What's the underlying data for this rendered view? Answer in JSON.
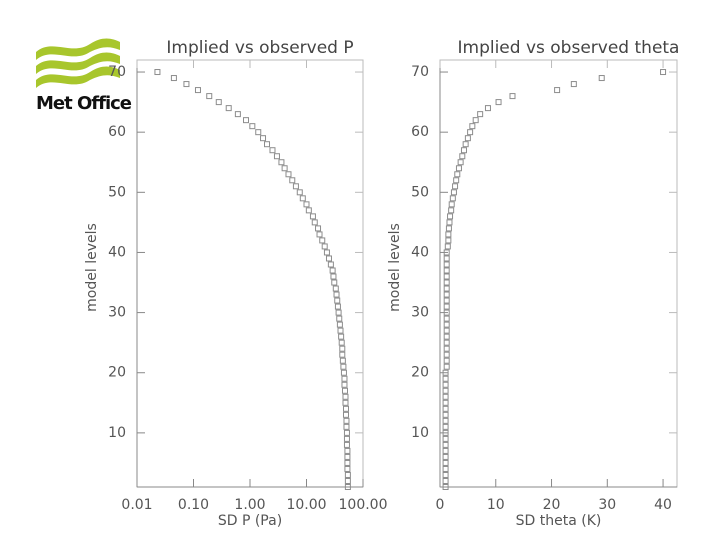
{
  "logo": {
    "text": "Met Office"
  },
  "chart_data": [
    {
      "type": "scatter",
      "title": "Implied vs observed P",
      "xlabel": "SD P (Pa)",
      "ylabel": "model levels",
      "xscale": "log",
      "xlim": [
        0.01,
        100
      ],
      "ylim": [
        1,
        72
      ],
      "xticks": [
        0.01,
        {
          "value": 0.1,
          "label": "0.10"
        },
        {
          "value": 1,
          "label": "1.00"
        },
        {
          "value": 10,
          "label": "10.00"
        },
        {
          "value": 100,
          "label": "100.00"
        }
      ],
      "yticks": [
        10,
        20,
        30,
        40,
        50,
        60,
        70
      ],
      "color": "#8c8c8c",
      "x": [
        54,
        54,
        54,
        53,
        53,
        53,
        53,
        52,
        52,
        52,
        51,
        51,
        50,
        50,
        49,
        49,
        48,
        47,
        47,
        46,
        45,
        44,
        43,
        43,
        42,
        41,
        40,
        39,
        38,
        37,
        36,
        35,
        34,
        33,
        31,
        30,
        29,
        27,
        25,
        23,
        21,
        19,
        17,
        16,
        14,
        13,
        11,
        10,
        8.6,
        7.6,
        6.5,
        5.6,
        4.8,
        4.1,
        3.6,
        3.0,
        2.5,
        2.0,
        1.7,
        1.4,
        1.1,
        0.85,
        0.61,
        0.42,
        0.28,
        0.19,
        0.12,
        0.075,
        0.045,
        0.023
      ],
      "y": [
        1,
        2,
        3,
        4,
        5,
        6,
        7,
        8,
        9,
        10,
        11,
        12,
        13,
        14,
        15,
        16,
        17,
        18,
        19,
        20,
        21,
        22,
        23,
        24,
        25,
        26,
        27,
        28,
        29,
        30,
        31,
        32,
        33,
        34,
        35,
        36,
        37,
        38,
        39,
        40,
        41,
        42,
        43,
        44,
        45,
        46,
        47,
        48,
        49,
        50,
        51,
        52,
        53,
        54,
        55,
        56,
        57,
        58,
        59,
        60,
        61,
        62,
        63,
        64,
        65,
        66,
        67,
        68,
        69,
        70
      ]
    },
    {
      "type": "scatter",
      "title": "Implied vs observed theta",
      "xlabel": "SD theta (K)",
      "ylabel": "model levels",
      "xscale": "linear",
      "xlim": [
        0,
        42.5
      ],
      "ylim": [
        1,
        72
      ],
      "xticks": [
        0,
        10,
        20,
        30,
        40
      ],
      "yticks": [
        10,
        20,
        30,
        40,
        50,
        60,
        70
      ],
      "color": "#8c8c8c",
      "x": [
        1.0,
        1.0,
        1.0,
        1.0,
        1.0,
        1.0,
        1.0,
        1.0,
        1.0,
        1.0,
        1.0,
        1.0,
        1.0,
        1.0,
        1.0,
        1.0,
        1.0,
        1.0,
        1.0,
        1.0,
        1.2,
        1.2,
        1.2,
        1.2,
        1.2,
        1.2,
        1.2,
        1.2,
        1.2,
        1.2,
        1.2,
        1.2,
        1.2,
        1.2,
        1.2,
        1.2,
        1.2,
        1.2,
        1.2,
        1.2,
        1.4,
        1.5,
        1.5,
        1.6,
        1.7,
        1.8,
        2.0,
        2.1,
        2.3,
        2.5,
        2.7,
        2.9,
        3.1,
        3.4,
        3.7,
        4.0,
        4.3,
        4.6,
        5.0,
        5.4,
        5.8,
        6.4,
        7.2,
        8.6,
        10.5,
        13,
        21,
        24,
        29,
        40
      ],
      "y": [
        1,
        2,
        3,
        4,
        5,
        6,
        7,
        8,
        9,
        10,
        11,
        12,
        13,
        14,
        15,
        16,
        17,
        18,
        19,
        20,
        21,
        22,
        23,
        24,
        25,
        26,
        27,
        28,
        29,
        30,
        31,
        32,
        33,
        34,
        35,
        36,
        37,
        38,
        39,
        40,
        41,
        42,
        43,
        44,
        45,
        46,
        47,
        48,
        49,
        50,
        51,
        52,
        53,
        54,
        55,
        56,
        57,
        58,
        59,
        60,
        61,
        62,
        63,
        64,
        65,
        66,
        67,
        68,
        69,
        70
      ]
    }
  ]
}
